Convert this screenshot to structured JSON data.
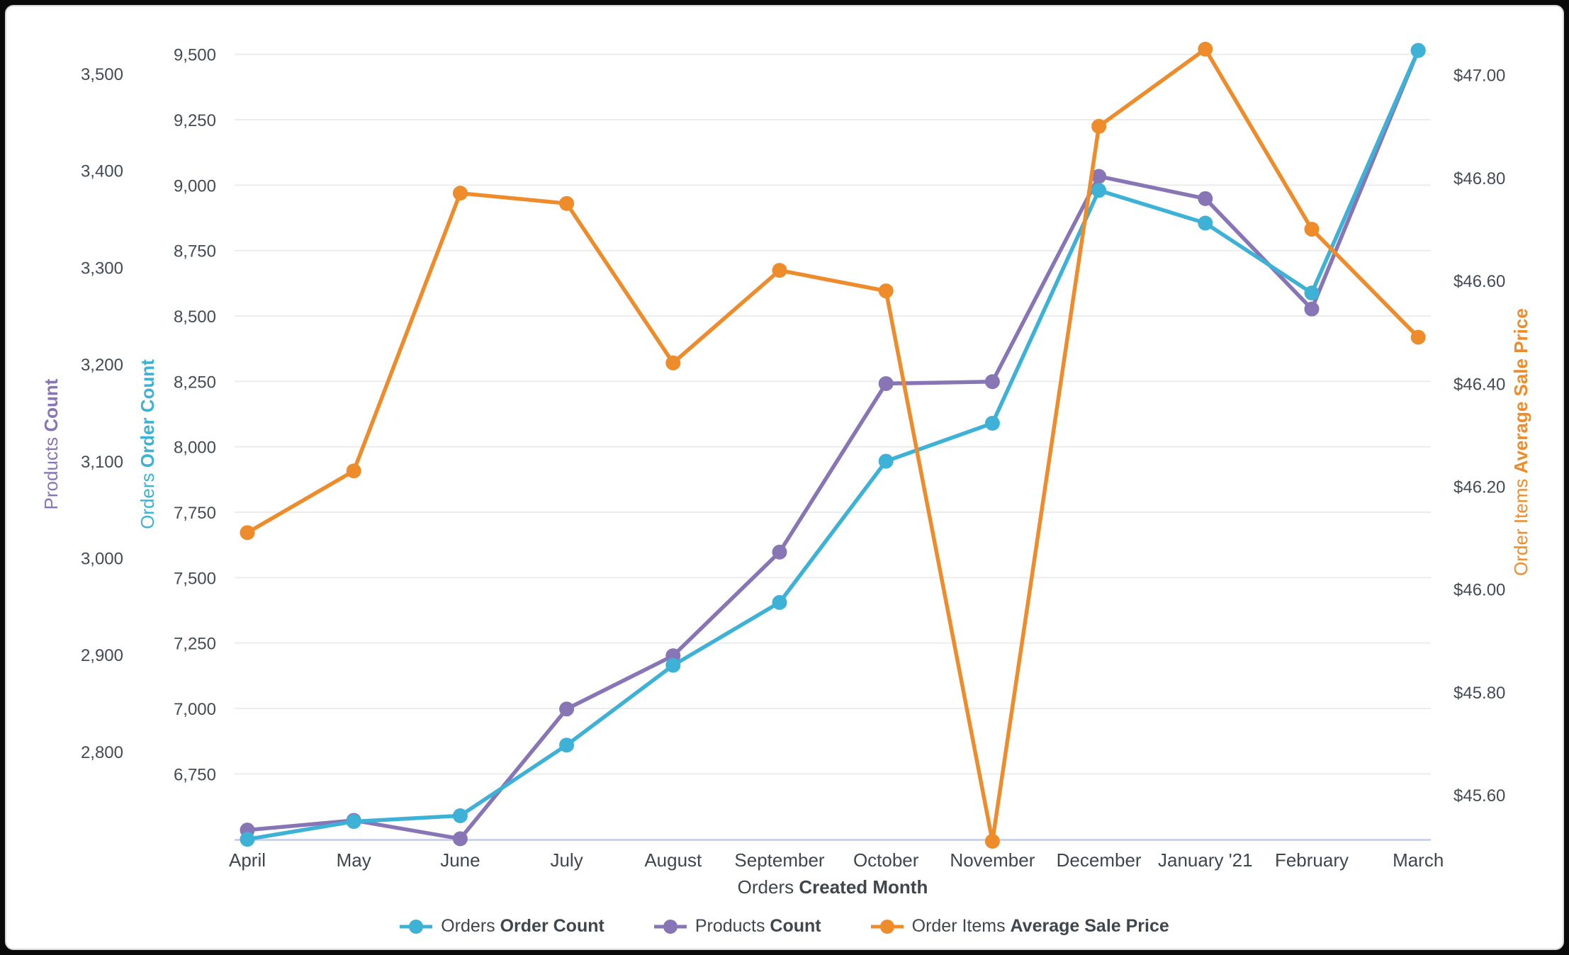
{
  "window": {
    "background": "#0a0a0a",
    "card_background": "#ffffff",
    "card_border": "#d7d7d7"
  },
  "chart_data": {
    "type": "line",
    "title": "",
    "xlabel_prefix": "Orders ",
    "xlabel_bold": "Created Month",
    "grid": true,
    "legend_position": "bottom",
    "colors": {
      "gridline": "#ececec",
      "baseline": "#ccd3e6",
      "tick_text": "#444b52",
      "label_text": "#3f474d"
    },
    "categories": [
      "April",
      "May",
      "June",
      "July",
      "August",
      "September",
      "October",
      "November",
      "December",
      "January '21",
      "February",
      "March"
    ],
    "series": [
      {
        "id": "products-count",
        "name_prefix": "Products ",
        "name_bold": "Count",
        "axis": "products",
        "color": "#8875b5",
        "values": [
          2719,
          2729,
          2710,
          2844,
          2899,
          3006,
          3180,
          3182,
          3394,
          3371,
          3257,
          3524
        ]
      },
      {
        "id": "orders-order-count",
        "name_prefix": "Orders ",
        "name_bold": "Order Count",
        "axis": "orders",
        "color": "#3eb1d6",
        "values": [
          6500,
          6568,
          6590,
          6860,
          7165,
          7405,
          7945,
          8090,
          8980,
          8855,
          8588,
          9515
        ]
      },
      {
        "id": "order-items-average-sale-price",
        "name_prefix": "Order Items ",
        "name_bold": "Average Sale Price",
        "axis": "price",
        "color": "#ee8c2b",
        "values": [
          46.11,
          46.23,
          46.77,
          46.75,
          46.44,
          46.62,
          46.58,
          45.51,
          46.9,
          47.05,
          46.7,
          46.49
        ]
      }
    ],
    "axes": {
      "products": {
        "title_prefix": "Products ",
        "title_bold": "Count",
        "color": "#8875b5",
        "side": "left-outer",
        "range": [
          2710,
          3545
        ],
        "tick_labels": [
          "3,500",
          "3,400",
          "3,300",
          "3,200",
          "3,100",
          "3,000",
          "2,900",
          "2,800"
        ],
        "tick_values": [
          3500,
          3400,
          3300,
          3200,
          3100,
          3000,
          2900,
          2800
        ]
      },
      "orders": {
        "title_prefix": "Orders ",
        "title_bold": "Order Count",
        "color": "#3eb1d6",
        "side": "left-inner",
        "range": [
          6498,
          9600
        ],
        "tick_labels": [
          "9,500",
          "9,250",
          "9,000",
          "8,750",
          "8,500",
          "8,250",
          "8,000",
          "7,750",
          "7,500",
          "7,250",
          "7,000",
          "6,750"
        ],
        "tick_values": [
          9500,
          9250,
          9000,
          8750,
          8500,
          8250,
          8000,
          7750,
          7500,
          7250,
          7000,
          6750
        ]
      },
      "price": {
        "title_prefix": "Order Items ",
        "title_bold": "Average Sale Price",
        "color": "#ee8c2b",
        "side": "right",
        "range": [
          45.51,
          47.09
        ],
        "tick_labels": [
          "$47.00",
          "$46.80",
          "$46.60",
          "$46.40",
          "$46.20",
          "$46.00",
          "$45.80",
          "$45.60"
        ],
        "tick_values": [
          47.0,
          46.8,
          46.6,
          46.4,
          46.2,
          46.0,
          45.8,
          45.6
        ]
      }
    }
  }
}
